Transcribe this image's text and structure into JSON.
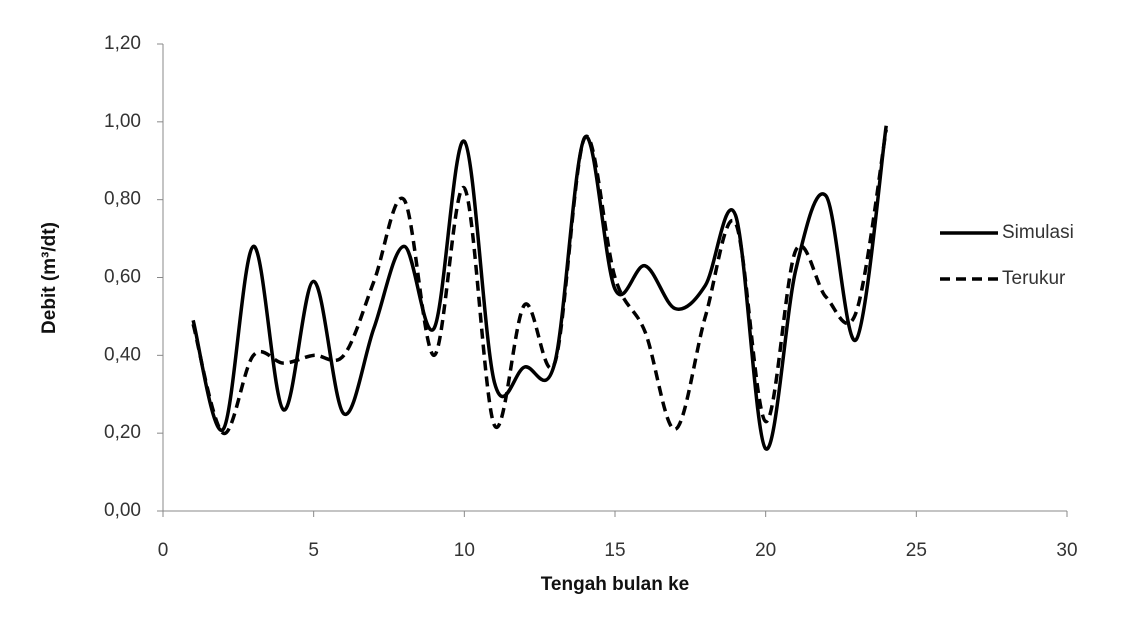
{
  "chart_data": {
    "type": "line",
    "x_label": "Tengah bulan ke",
    "y_label": "Debit (m³/dt)",
    "x": [
      1,
      2,
      3,
      4,
      5,
      6,
      7,
      8,
      9,
      10,
      11,
      12,
      13,
      14,
      15,
      16,
      17,
      18,
      19,
      20,
      21,
      22,
      23,
      24
    ],
    "series": [
      {
        "name": "Simulasi",
        "color": "#000000",
        "dash": "solid",
        "values": [
          0.49,
          0.21,
          0.68,
          0.26,
          0.59,
          0.25,
          0.47,
          0.68,
          0.47,
          0.95,
          0.33,
          0.37,
          0.38,
          0.96,
          0.57,
          0.63,
          0.52,
          0.58,
          0.76,
          0.16,
          0.62,
          0.81,
          0.44,
          0.99
        ]
      },
      {
        "name": "Terukur",
        "color": "#000000",
        "dash": "dashed",
        "values": [
          0.48,
          0.2,
          0.4,
          0.38,
          0.4,
          0.4,
          0.59,
          0.8,
          0.4,
          0.83,
          0.22,
          0.53,
          0.38,
          0.96,
          0.6,
          0.46,
          0.21,
          0.5,
          0.74,
          0.23,
          0.67,
          0.55,
          0.51,
          0.98
        ]
      }
    ],
    "xlim": [
      0,
      30
    ],
    "xticks": [
      0,
      5,
      10,
      15,
      20,
      25,
      30
    ],
    "ylim": [
      0,
      1.2
    ],
    "yticks": [
      {
        "value": 0,
        "label": "0,00"
      },
      {
        "value": 0.2,
        "label": "0,20"
      },
      {
        "value": 0.4,
        "label": "0,40"
      },
      {
        "value": 0.6,
        "label": "0,60"
      },
      {
        "value": 0.8,
        "label": "0,80"
      },
      {
        "value": 1.0,
        "label": "1,00"
      },
      {
        "value": 1.2,
        "label": "1,20"
      }
    ],
    "smooth": true,
    "legend": "right"
  }
}
